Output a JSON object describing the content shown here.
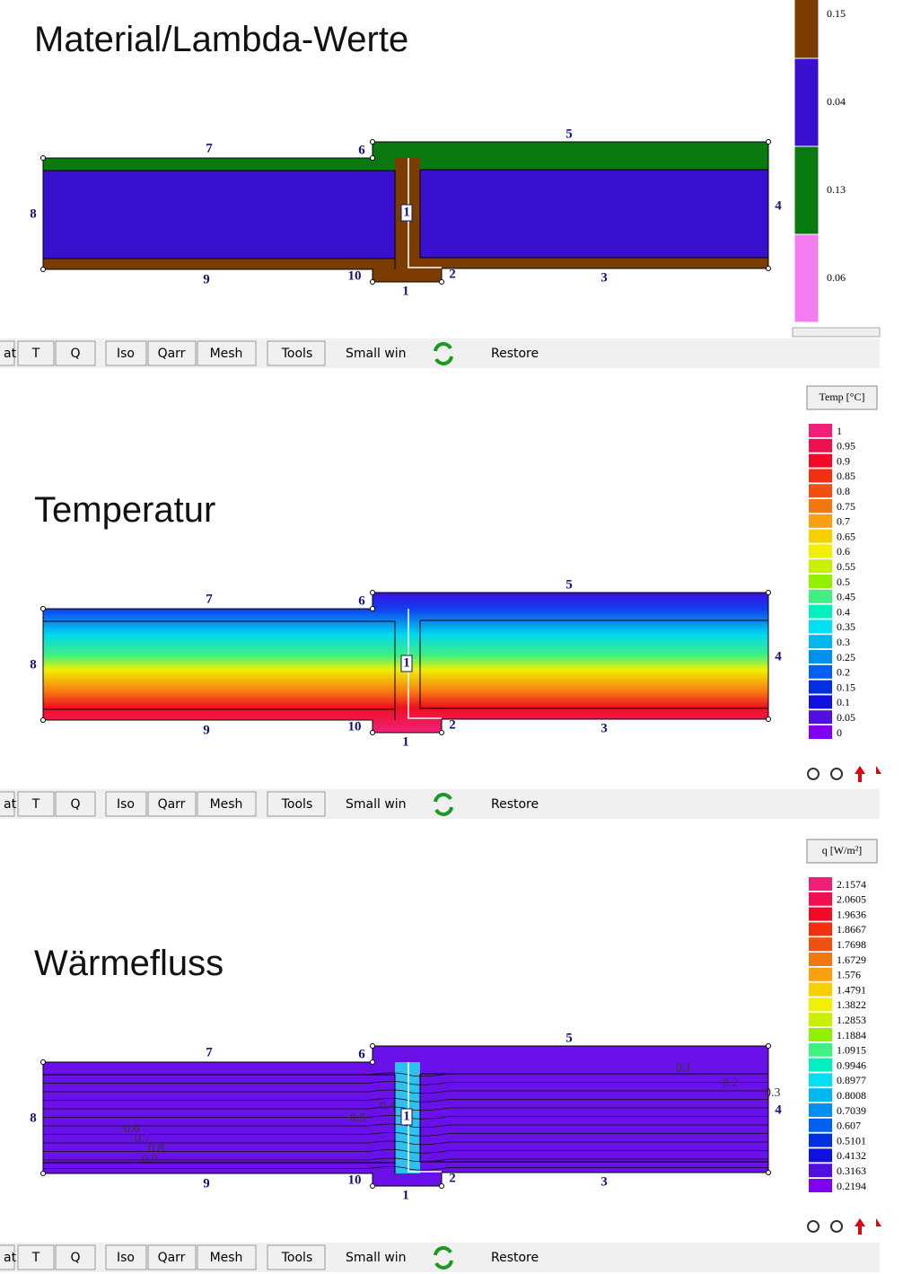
{
  "panels": [
    {
      "title": "Material/Lambda-Werte",
      "node_labels": [
        "7",
        "6",
        "5",
        "8",
        "4",
        "1",
        "9",
        "10",
        "2",
        "3",
        "1"
      ],
      "legend": {
        "items": [
          {
            "label": "0.15",
            "color": "#7a3c00"
          },
          {
            "label": "0.04",
            "color": "#3a10d0"
          },
          {
            "label": "0.13",
            "color": "#0a7a10"
          },
          {
            "label": "0.06",
            "color": "#f47cf0"
          }
        ]
      },
      "toolbar": [
        "at",
        "T",
        "Q",
        "Iso",
        "Qarr",
        "Mesh",
        "Tools",
        "Small win",
        "Restore"
      ]
    },
    {
      "title": "Temperatur",
      "node_labels": [
        "7",
        "6",
        "5",
        "8",
        "4",
        "1",
        "9",
        "10",
        "2",
        "3",
        "1"
      ],
      "legend": {
        "header": "Temp [°C]",
        "items": [
          {
            "label": "1",
            "color": "#f0207a"
          },
          {
            "label": "0.95",
            "color": "#f01050"
          },
          {
            "label": "0.9",
            "color": "#f00a28"
          },
          {
            "label": "0.85",
            "color": "#f03010"
          },
          {
            "label": "0.8",
            "color": "#f05010"
          },
          {
            "label": "0.75",
            "color": "#f07810"
          },
          {
            "label": "0.7",
            "color": "#f8a010"
          },
          {
            "label": "0.65",
            "color": "#f8d000"
          },
          {
            "label": "0.6",
            "color": "#f0f000"
          },
          {
            "label": "0.55",
            "color": "#c8f000"
          },
          {
            "label": "0.5",
            "color": "#90f000"
          },
          {
            "label": "0.45",
            "color": "#40f080"
          },
          {
            "label": "0.4",
            "color": "#00f0c0"
          },
          {
            "label": "0.35",
            "color": "#00e0f0"
          },
          {
            "label": "0.3",
            "color": "#00b8f0"
          },
          {
            "label": "0.25",
            "color": "#0090f0"
          },
          {
            "label": "0.2",
            "color": "#0060f0"
          },
          {
            "label": "0.15",
            "color": "#0030e0"
          },
          {
            "label": "0.1",
            "color": "#1010e0"
          },
          {
            "label": "0.05",
            "color": "#5010e0"
          },
          {
            "label": "0",
            "color": "#8000f0"
          }
        ]
      },
      "toolbar": [
        "at",
        "T",
        "Q",
        "Iso",
        "Qarr",
        "Mesh",
        "Tools",
        "Small win",
        "Restore"
      ]
    },
    {
      "title": "Wärmefluss",
      "node_labels": [
        "7",
        "6",
        "5",
        "8",
        "4",
        "1",
        "9",
        "10",
        "2",
        "3",
        "1"
      ],
      "isoline_labels": [
        "0.1",
        "0.2",
        "0.3",
        "0.4",
        "0.5",
        "0.6",
        "0.7",
        "0.8",
        "0.9"
      ],
      "legend": {
        "header": "q [W/m²]",
        "items": [
          {
            "label": "2.1574",
            "color": "#f0207a"
          },
          {
            "label": "2.0605",
            "color": "#f01050"
          },
          {
            "label": "1.9636",
            "color": "#f00a28"
          },
          {
            "label": "1.8667",
            "color": "#f03010"
          },
          {
            "label": "1.7698",
            "color": "#f05010"
          },
          {
            "label": "1.6729",
            "color": "#f07810"
          },
          {
            "label": "1.576",
            "color": "#f8a010"
          },
          {
            "label": "1.4791",
            "color": "#f8d000"
          },
          {
            "label": "1.3822",
            "color": "#f0f000"
          },
          {
            "label": "1.2853",
            "color": "#c8f000"
          },
          {
            "label": "1.1884",
            "color": "#90f000"
          },
          {
            "label": "1.0915",
            "color": "#40f080"
          },
          {
            "label": "0.9946",
            "color": "#00f0c0"
          },
          {
            "label": "0.8977",
            "color": "#00e0f0"
          },
          {
            "label": "0.8008",
            "color": "#00b8f0"
          },
          {
            "label": "0.7039",
            "color": "#0090f0"
          },
          {
            "label": "0.607",
            "color": "#0060f0"
          },
          {
            "label": "0.5101",
            "color": "#0030e0"
          },
          {
            "label": "0.4132",
            "color": "#1010e0"
          },
          {
            "label": "0.3163",
            "color": "#5010e0"
          },
          {
            "label": "0.2194",
            "color": "#8000f0"
          }
        ]
      },
      "toolbar": [
        "at",
        "T",
        "Q",
        "Iso",
        "Qarr",
        "Mesh",
        "Tools",
        "Small win",
        "Restore"
      ]
    }
  ]
}
